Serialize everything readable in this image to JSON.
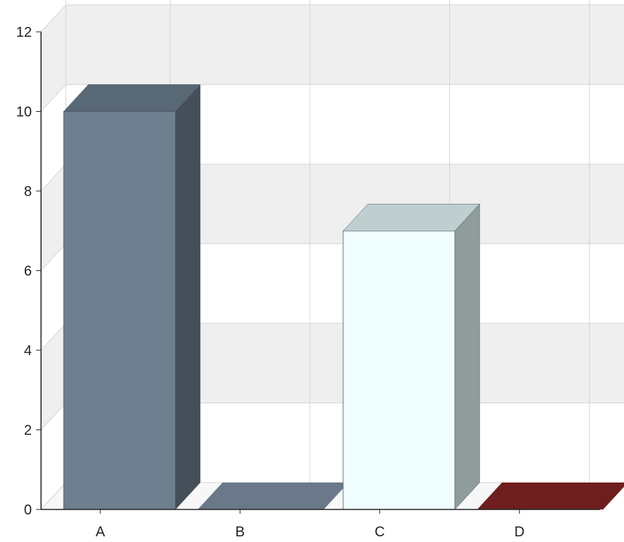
{
  "chart_data": {
    "type": "bar",
    "style": "3d",
    "title": "",
    "xlabel": "",
    "ylabel": "",
    "categories": [
      "A",
      "B",
      "C",
      "D"
    ],
    "values": [
      10,
      0,
      7,
      0
    ],
    "ylim": [
      0,
      12
    ],
    "yticks": [
      0,
      2,
      4,
      6,
      8,
      10,
      12
    ],
    "grid": true,
    "legend": "none",
    "colors": {
      "A": {
        "front": "#6e7f8f",
        "top": "#586875",
        "side": "#454f59"
      },
      "B": {
        "front": "#6a7889",
        "top": "#6a7889",
        "side": "#4f5a66"
      },
      "C": {
        "front": "#f0fdff",
        "top": "#bfcfcf",
        "side": "#8e9c9c"
      },
      "D": {
        "front": "#6e1e1e",
        "top": "#6e1e1e",
        "side": "#4f1414"
      }
    },
    "background": {
      "band": "#efefef",
      "wall": "#f7f7f7",
      "grid": "#d6d6d6",
      "axis": "#222222"
    }
  }
}
